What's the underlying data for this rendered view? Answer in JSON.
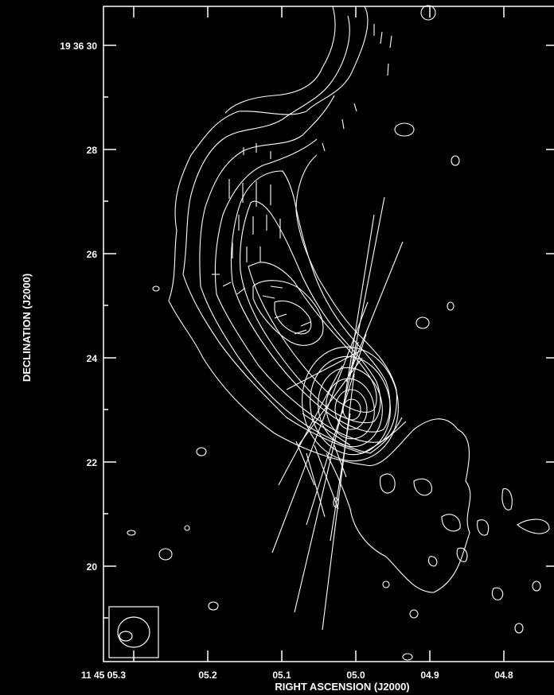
{
  "chart_data": {
    "type": "contour",
    "xlabel": "RIGHT ASCENSION (J2000)",
    "ylabel": "DECLINATION (J2000)",
    "xticks": [
      "11 45 05.3",
      "05.2",
      "05.1",
      "05.0",
      "04.9",
      "04.8"
    ],
    "yticks": [
      "19 36 30",
      "28",
      "26",
      "24",
      "22",
      "20"
    ],
    "grid": false,
    "colors": {
      "background": "#000000",
      "ink": "#ffffff"
    },
    "components": [
      "total-intensity contours (radio jet, core near 05.0 / 23.0)",
      "polarization vectors",
      "restoring beam ellipse (lower-left)"
    ]
  }
}
